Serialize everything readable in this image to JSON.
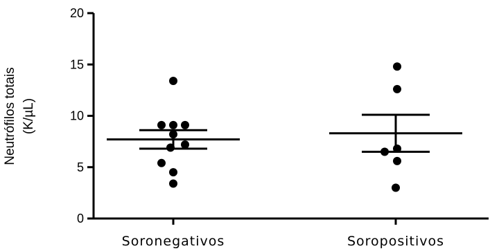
{
  "chart_data": {
    "type": "scatter",
    "title": "",
    "ylabel_lines": [
      "Neutrófilos totais",
      "(K/µL)"
    ],
    "xlabel": "",
    "ylim": [
      0,
      20
    ],
    "yticks": [
      0,
      5,
      10,
      15,
      20
    ],
    "categories": [
      "Soronegativos",
      "Soropositivos"
    ],
    "groups": [
      {
        "category": "Soronegativos",
        "points": [
          13.4,
          9.1,
          9.1,
          9.1,
          8.2,
          7.2,
          6.9,
          5.4,
          4.5,
          3.4
        ],
        "mean": 7.7,
        "error_upper": 8.6,
        "error_lower": 6.8
      },
      {
        "category": "Soropositivos",
        "points": [
          14.8,
          12.6,
          6.8,
          6.5,
          5.6,
          3.0
        ],
        "mean": 8.3,
        "error_upper": 10.1,
        "error_lower": 6.5
      }
    ],
    "grid": false,
    "legend": "none"
  }
}
